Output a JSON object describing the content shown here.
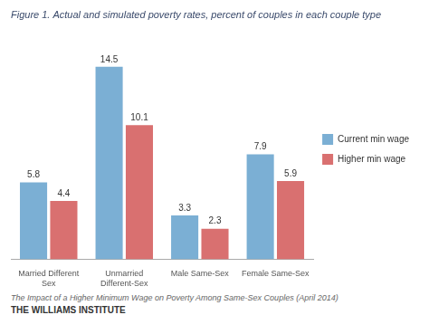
{
  "chart_data": {
    "type": "bar",
    "title": "Figure 1. Actual and simulated poverty rates, percent of couples in each couple type",
    "categories": [
      "Married Different\nSex",
      "Unmarried\nDifferent-Sex",
      "Male Same-Sex",
      "Female Same-Sex"
    ],
    "series": [
      {
        "name": "Current min wage",
        "color": "#7bafd4",
        "values": [
          5.8,
          14.5,
          3.3,
          7.9
        ]
      },
      {
        "name": "Higher min wage",
        "color": "#d97070",
        "values": [
          4.4,
          10.1,
          2.3,
          5.9
        ]
      }
    ],
    "ylim": [
      0,
      17.0
    ],
    "grid": false,
    "legend": "right",
    "data_labels": true,
    "tick_labels": "x",
    "annotations": [
      "The Impact of a Higher Minimum Wage on Poverty Among Same-Sex Couples (April 2014)",
      "THE WILLIAMS INSTITUTE"
    ]
  }
}
